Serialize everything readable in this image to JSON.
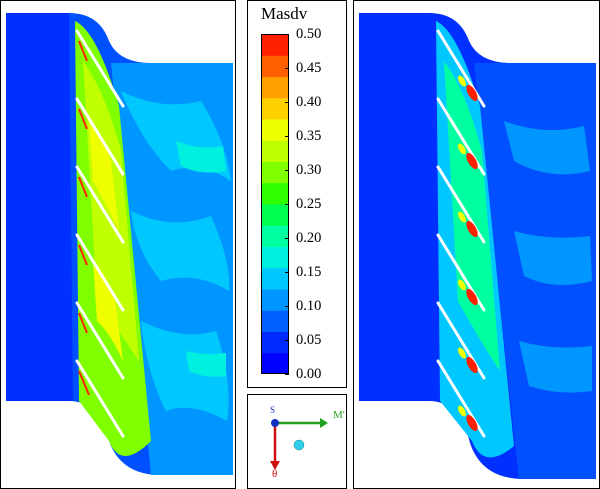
{
  "legend": {
    "title": "Masdv",
    "ticks": [
      "0.50",
      "0.45",
      "0.40",
      "0.35",
      "0.30",
      "0.25",
      "0.20",
      "0.15",
      "0.10",
      "0.05",
      "0.00"
    ],
    "colors": [
      "#0000ff",
      "#0028ff",
      "#0060ff",
      "#0096ff",
      "#00c8ff",
      "#00f0e0",
      "#00ffa0",
      "#00ff50",
      "#2eff00",
      "#80ff00",
      "#c0ff00",
      "#f0ff00",
      "#ffd000",
      "#ffa000",
      "#ff6000",
      "#ff2000"
    ]
  },
  "axes": {
    "x_label": "M'",
    "y_label": "θ",
    "origin_label": "S"
  }
}
